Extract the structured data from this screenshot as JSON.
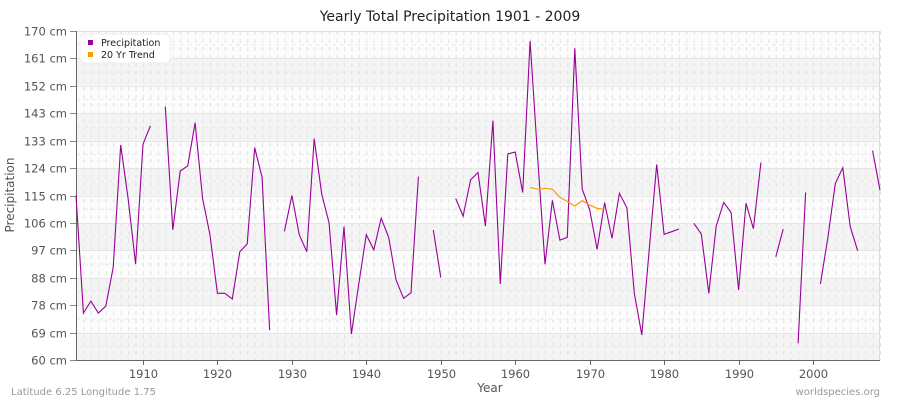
{
  "chart_data": {
    "type": "line",
    "title": "Yearly Total Precipitation 1901 - 2009",
    "xlabel": "Year",
    "ylabel": "Precipitation",
    "xlim": [
      1901,
      2009
    ],
    "ylim": [
      60,
      170
    ],
    "x_ticks": [
      1910,
      1920,
      1930,
      1940,
      1950,
      1960,
      1970,
      1980,
      1990,
      2000
    ],
    "y_ticks": [
      {
        "value": 60,
        "label": "60 cm"
      },
      {
        "value": 69.17,
        "label": "69 cm"
      },
      {
        "value": 78.33,
        "label": "78 cm"
      },
      {
        "value": 87.5,
        "label": "88 cm"
      },
      {
        "value": 96.67,
        "label": "97 cm"
      },
      {
        "value": 105.83,
        "label": "106 cm"
      },
      {
        "value": 115,
        "label": "115 cm"
      },
      {
        "value": 124.17,
        "label": "124 cm"
      },
      {
        "value": 133.33,
        "label": "133 cm"
      },
      {
        "value": 142.5,
        "label": "143 cm"
      },
      {
        "value": 151.67,
        "label": "152 cm"
      },
      {
        "value": 160.83,
        "label": "161 cm"
      },
      {
        "value": 170,
        "label": "170 cm"
      }
    ],
    "grid": true,
    "legend_position": "top-left",
    "series": [
      {
        "name": "Precipitation",
        "color": "#990099",
        "x": [
          1901,
          1902,
          1903,
          1904,
          1905,
          1906,
          1907,
          1908,
          1909,
          1910,
          1911,
          1912,
          1913,
          1914,
          1915,
          1916,
          1917,
          1918,
          1919,
          1920,
          1921,
          1922,
          1923,
          1924,
          1925,
          1926,
          1927,
          1928,
          1929,
          1930,
          1931,
          1932,
          1933,
          1934,
          1935,
          1936,
          1937,
          1938,
          1939,
          1940,
          1941,
          1942,
          1943,
          1944,
          1945,
          1946,
          1947,
          1948,
          1949,
          1950,
          1951,
          1952,
          1953,
          1954,
          1955,
          1956,
          1957,
          1958,
          1959,
          1960,
          1961,
          1962,
          1963,
          1964,
          1965,
          1966,
          1967,
          1968,
          1969,
          1970,
          1971,
          1972,
          1973,
          1974,
          1975,
          1976,
          1977,
          1978,
          1979,
          1980,
          1981,
          1982,
          1983,
          1984,
          1985,
          1986,
          1987,
          1988,
          1989,
          1990,
          1991,
          1992,
          1993,
          1994,
          1995,
          1996,
          1997,
          1998,
          1999,
          2000,
          2001,
          2002,
          2003,
          2004,
          2005,
          2006,
          2007,
          2008,
          2009
        ],
        "values": [
          115,
          75.7,
          79.7,
          75.7,
          78,
          91,
          131.9,
          114,
          92.1,
          132.2,
          138.3,
          null,
          144.7,
          103.5,
          123.2,
          124.9,
          139.3,
          114,
          101.8,
          82.3,
          82.3,
          80.4,
          96.2,
          98.8,
          131,
          121,
          70,
          null,
          103,
          115,
          101.8,
          96.2,
          134,
          115.5,
          105.8,
          75,
          104.6,
          68.7,
          85.7,
          101.9,
          96.8,
          107.4,
          101,
          86.7,
          80.6,
          82.5,
          121.3,
          null,
          103.5,
          87.6,
          null,
          114,
          108.1,
          120.2,
          122.7,
          104.8,
          140,
          85.4,
          128.9,
          129.5,
          116,
          166.7,
          128,
          92,
          113.4,
          100.1,
          101,
          164.2,
          117.2,
          110.2,
          97,
          112.6,
          100.7,
          115.7,
          110.9,
          82.3,
          68.4,
          96.8,
          125.4,
          102,
          102.9,
          103.8,
          null,
          105.7,
          102.1,
          82.3,
          104.8,
          112.7,
          109.3,
          83.4,
          112.4,
          103.9,
          126,
          null,
          94.5,
          103.8,
          null,
          65.6,
          116,
          null,
          85.4,
          101,
          119,
          124.3,
          104.6,
          96.5,
          null,
          130,
          116.8
        ]
      },
      {
        "name": "20 Yr Trend",
        "color": "#ff9900",
        "x": [
          1962,
          1963,
          1964,
          1965,
          1966,
          1967,
          1968,
          1969,
          1970,
          1971,
          1972
        ],
        "values": [
          117.7,
          117.1,
          117.4,
          117.1,
          114.4,
          113,
          111.5,
          113.3,
          111.8,
          110.7,
          110.4
        ]
      }
    ]
  },
  "header": {
    "title": "Yearly Total Precipitation 1901 - 2009"
  },
  "legend": {
    "items": [
      {
        "label": "Precipitation",
        "color": "#990099"
      },
      {
        "label": "20 Yr Trend",
        "color": "#ff9900"
      }
    ]
  },
  "axes": {
    "xlabel": "Year",
    "ylabel": "Precipitation"
  },
  "footer": {
    "left": "Latitude 6.25 Longitude 1.75",
    "right": "worldspecies.org"
  }
}
